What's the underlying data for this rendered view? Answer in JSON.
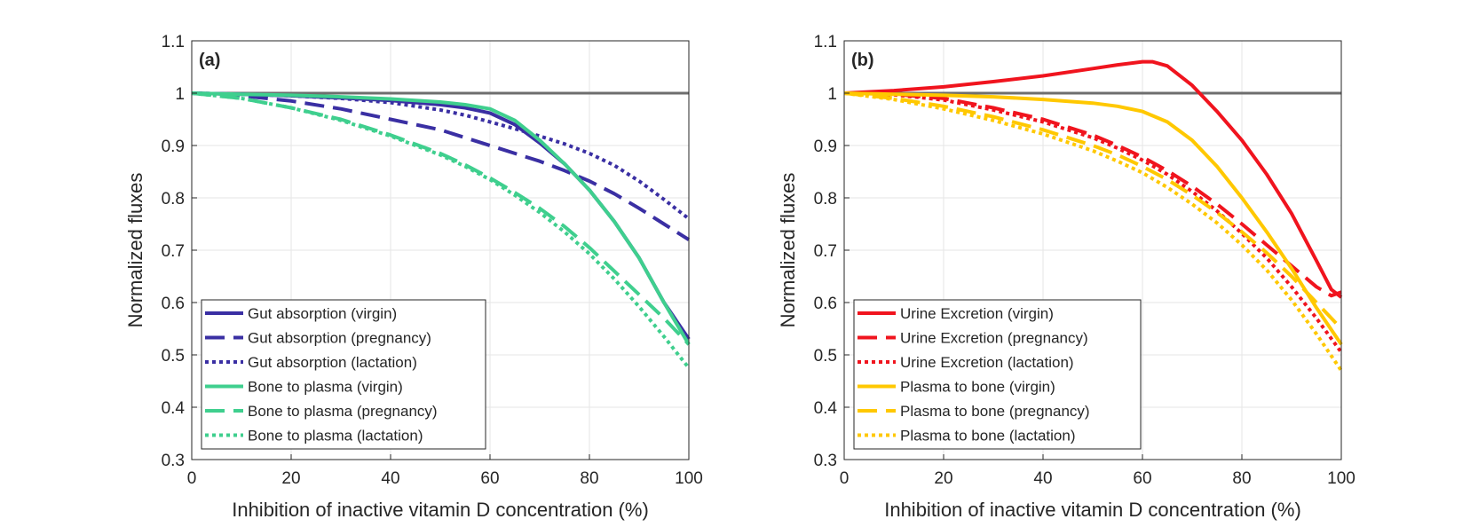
{
  "chart_data": [
    {
      "type": "line",
      "panel_label": "(a)",
      "xlabel": "Inhibition of inactive vitamin D concentration (%)",
      "ylabel": "Normalized fluxes",
      "xlim": [
        0,
        100
      ],
      "ylim": [
        0.3,
        1.1
      ],
      "xticks": [
        "0",
        "20",
        "40",
        "60",
        "80",
        "100"
      ],
      "yticks": [
        "0.3",
        "0.4",
        "0.5",
        "0.6",
        "0.7",
        "0.8",
        "0.9",
        "1",
        "1.1"
      ],
      "grid": true,
      "legend_position": "bottom-left",
      "reference_line": {
        "y": 1,
        "color": "#6e6e6e"
      },
      "series": [
        {
          "name": "Gut absorption (virgin)",
          "color": "#3a2fa3",
          "style": "solid",
          "x": [
            0,
            10,
            20,
            30,
            40,
            50,
            55,
            60,
            65,
            70,
            75,
            80,
            85,
            90,
            95,
            100
          ],
          "y": [
            1,
            0.998,
            0.995,
            0.991,
            0.986,
            0.978,
            0.972,
            0.962,
            0.94,
            0.905,
            0.865,
            0.815,
            0.755,
            0.685,
            0.6,
            0.53
          ]
        },
        {
          "name": "Gut absorption (pregnancy)",
          "color": "#3a2fa3",
          "style": "dashed",
          "x": [
            0,
            10,
            20,
            30,
            40,
            50,
            55,
            60,
            65,
            70,
            75,
            80,
            85,
            90,
            95,
            100
          ],
          "y": [
            1,
            0.995,
            0.985,
            0.97,
            0.95,
            0.93,
            0.915,
            0.9,
            0.885,
            0.87,
            0.852,
            0.832,
            0.808,
            0.78,
            0.75,
            0.72
          ]
        },
        {
          "name": "Gut absorption (lactation)",
          "color": "#3a2fa3",
          "style": "dotted",
          "x": [
            0,
            10,
            20,
            30,
            40,
            50,
            55,
            60,
            65,
            70,
            75,
            80,
            85,
            90,
            95,
            100
          ],
          "y": [
            1,
            0.998,
            0.995,
            0.99,
            0.982,
            0.968,
            0.958,
            0.945,
            0.932,
            0.918,
            0.903,
            0.885,
            0.862,
            0.832,
            0.797,
            0.76
          ]
        },
        {
          "name": "Bone to plasma (virgin)",
          "color": "#3fcf8e",
          "style": "solid",
          "x": [
            0,
            10,
            20,
            30,
            40,
            50,
            55,
            60,
            65,
            70,
            75,
            80,
            85,
            90,
            95,
            100
          ],
          "y": [
            1,
            0.998,
            0.996,
            0.993,
            0.989,
            0.983,
            0.978,
            0.97,
            0.948,
            0.91,
            0.865,
            0.815,
            0.755,
            0.685,
            0.6,
            0.52
          ]
        },
        {
          "name": "Bone to plasma (pregnancy)",
          "color": "#3fcf8e",
          "style": "dashed",
          "x": [
            0,
            10,
            20,
            30,
            40,
            50,
            55,
            60,
            65,
            70,
            75,
            80,
            85,
            90,
            95,
            100
          ],
          "y": [
            1,
            0.99,
            0.972,
            0.95,
            0.92,
            0.885,
            0.863,
            0.838,
            0.81,
            0.78,
            0.745,
            0.705,
            0.66,
            0.615,
            0.57,
            0.52
          ]
        },
        {
          "name": "Bone to plasma (lactation)",
          "color": "#3fcf8e",
          "style": "dotted",
          "x": [
            0,
            10,
            20,
            30,
            40,
            50,
            55,
            60,
            65,
            70,
            75,
            80,
            85,
            90,
            95,
            100
          ],
          "y": [
            1,
            0.99,
            0.972,
            0.948,
            0.918,
            0.882,
            0.86,
            0.835,
            0.805,
            0.772,
            0.735,
            0.693,
            0.645,
            0.592,
            0.535,
            0.475
          ]
        }
      ]
    },
    {
      "type": "line",
      "panel_label": "(b)",
      "xlabel": "Inhibition of inactive vitamin D concentration (%)",
      "ylabel": "Normalized fluxes",
      "xlim": [
        0,
        100
      ],
      "ylim": [
        0.3,
        1.1
      ],
      "xticks": [
        "0",
        "20",
        "40",
        "60",
        "80",
        "100"
      ],
      "yticks": [
        "0.3",
        "0.4",
        "0.5",
        "0.6",
        "0.7",
        "0.8",
        "0.9",
        "1",
        "1.1"
      ],
      "grid": true,
      "legend_position": "bottom-left",
      "reference_line": {
        "y": 1,
        "color": "#6e6e6e"
      },
      "series": [
        {
          "name": "Urine Excretion (virgin)",
          "color": "#f0141e",
          "style": "solid",
          "x": [
            0,
            10,
            20,
            30,
            40,
            50,
            55,
            60,
            62,
            65,
            70,
            75,
            80,
            85,
            90,
            95,
            98,
            100
          ],
          "y": [
            1,
            1.005,
            1.012,
            1.022,
            1.033,
            1.047,
            1.054,
            1.06,
            1.06,
            1.052,
            1.015,
            0.965,
            0.91,
            0.845,
            0.77,
            0.68,
            0.625,
            0.61
          ]
        },
        {
          "name": "Urine Excretion (pregnancy)",
          "color": "#f0141e",
          "style": "dashed",
          "x": [
            0,
            10,
            20,
            30,
            40,
            50,
            55,
            60,
            65,
            70,
            75,
            80,
            85,
            90,
            95,
            98,
            100
          ],
          "y": [
            1,
            0.998,
            0.99,
            0.972,
            0.95,
            0.92,
            0.9,
            0.878,
            0.852,
            0.822,
            0.788,
            0.75,
            0.71,
            0.67,
            0.63,
            0.613,
            0.62
          ]
        },
        {
          "name": "Urine Excretion (lactation)",
          "color": "#f0141e",
          "style": "dotted",
          "x": [
            0,
            10,
            20,
            30,
            40,
            50,
            55,
            60,
            65,
            70,
            75,
            80,
            85,
            90,
            95,
            100
          ],
          "y": [
            1,
            0.997,
            0.987,
            0.968,
            0.945,
            0.915,
            0.895,
            0.872,
            0.845,
            0.812,
            0.775,
            0.732,
            0.685,
            0.63,
            0.57,
            0.505
          ]
        },
        {
          "name": "Plasma to bone (virgin)",
          "color": "#ffc800",
          "style": "solid",
          "x": [
            0,
            10,
            20,
            30,
            40,
            50,
            55,
            60,
            65,
            70,
            75,
            80,
            85,
            90,
            95,
            100
          ],
          "y": [
            1,
            0.998,
            0.996,
            0.993,
            0.988,
            0.981,
            0.975,
            0.965,
            0.945,
            0.91,
            0.86,
            0.8,
            0.735,
            0.665,
            0.59,
            0.52
          ]
        },
        {
          "name": "Plasma to bone (pregnancy)",
          "color": "#ffc800",
          "style": "dashed",
          "x": [
            0,
            10,
            20,
            30,
            40,
            50,
            55,
            60,
            65,
            70,
            75,
            80,
            85,
            90,
            95,
            100
          ],
          "y": [
            1,
            0.99,
            0.975,
            0.955,
            0.93,
            0.9,
            0.882,
            0.86,
            0.835,
            0.805,
            0.772,
            0.735,
            0.695,
            0.65,
            0.6,
            0.55
          ]
        },
        {
          "name": "Plasma to bone (lactation)",
          "color": "#ffc800",
          "style": "dotted",
          "x": [
            0,
            10,
            20,
            30,
            40,
            50,
            55,
            60,
            65,
            70,
            75,
            80,
            85,
            90,
            95,
            100
          ],
          "y": [
            1,
            0.988,
            0.97,
            0.948,
            0.922,
            0.89,
            0.87,
            0.848,
            0.82,
            0.788,
            0.752,
            0.71,
            0.662,
            0.605,
            0.54,
            0.47
          ]
        }
      ]
    }
  ]
}
